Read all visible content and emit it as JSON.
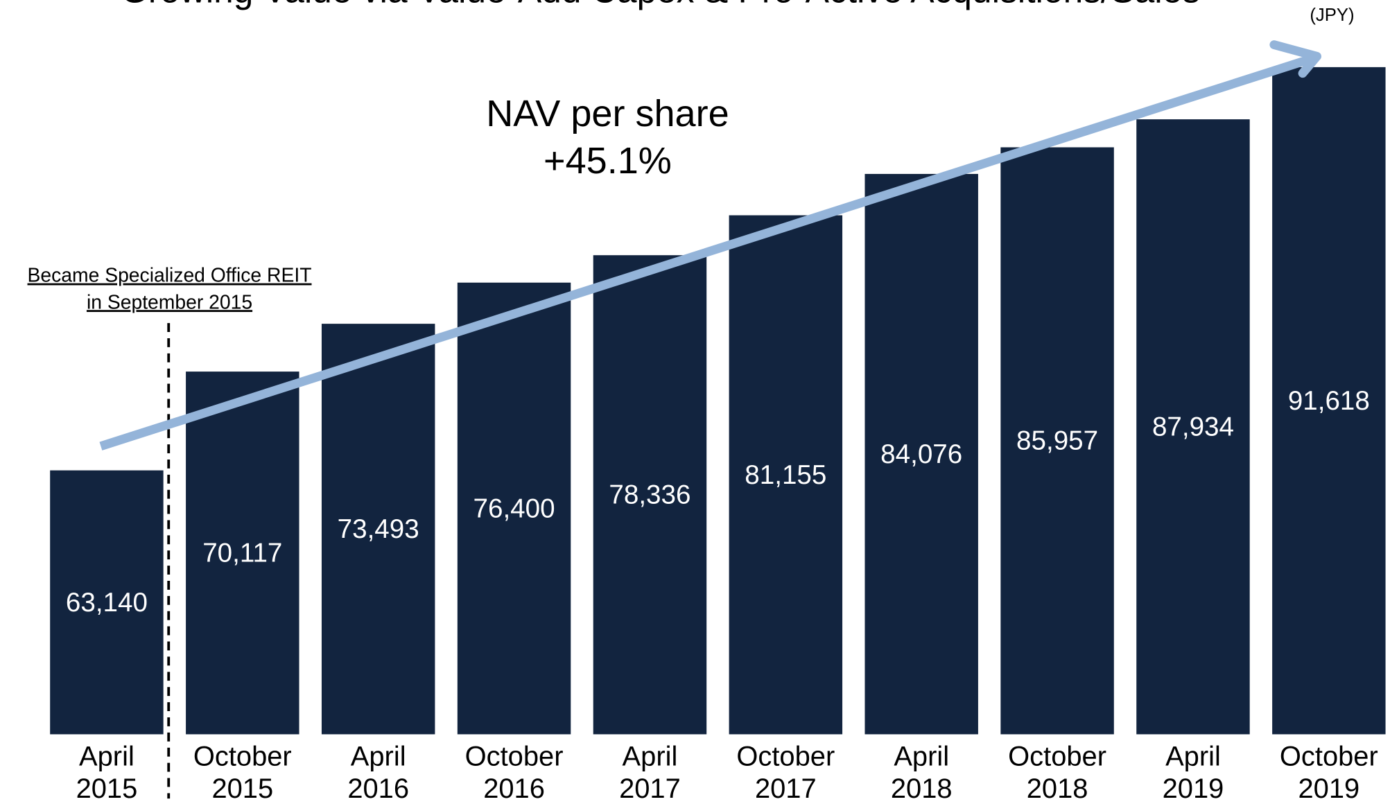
{
  "chart_data": {
    "type": "bar",
    "title": "Growing Value via Value-Add Capex & Pro-Active Acquisitions/Sales",
    "unit_label": "(JPY)",
    "annotation": {
      "lines": [
        "NAV per share",
        "+45.1%"
      ]
    },
    "event_note": {
      "lines": [
        "Became Specialized Office REIT",
        "in September 2015"
      ]
    },
    "categories": [
      [
        "April",
        "2015"
      ],
      [
        "October",
        "2015"
      ],
      [
        "April",
        "2016"
      ],
      [
        "October",
        "2016"
      ],
      [
        "April",
        "2017"
      ],
      [
        "October",
        "2017"
      ],
      [
        "April",
        "2018"
      ],
      [
        "October",
        "2018"
      ],
      [
        "April",
        "2019"
      ],
      [
        "October",
        "2019"
      ]
    ],
    "values": [
      63140,
      70117,
      73493,
      76400,
      78336,
      81155,
      84076,
      85957,
      87934,
      91618
    ],
    "value_labels": [
      "63,140",
      "70,117",
      "73,493",
      "76,400",
      "78,336",
      "81,155",
      "84,076",
      "85,957",
      "87,934",
      "91,618"
    ],
    "color": "#12243f",
    "arrow_color": "#94b4d9",
    "ylim": [
      44500,
      96350
    ],
    "grid": false
  }
}
